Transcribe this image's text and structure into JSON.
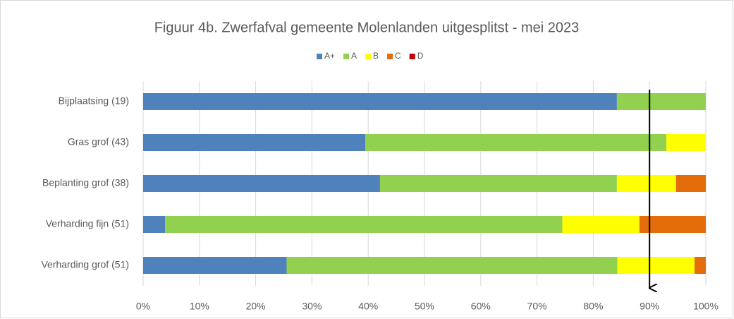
{
  "chart_data": {
    "type": "stacked_bar_horizontal",
    "title": "Figuur 4b. Zwerfafval gemeente Molenlanden uitgesplitst - mei 2023",
    "categories": [
      "Bijplaatsing (19)",
      "Gras grof (43)",
      "Beplanting grof (38)",
      "Verharding fijn (51)",
      "Verharding grof (51)"
    ],
    "series": [
      {
        "name": "A+",
        "color": "#4f81bd",
        "values": [
          84.2,
          39.5,
          42.1,
          3.9,
          25.5
        ]
      },
      {
        "name": "A",
        "color": "#92d050",
        "values": [
          15.8,
          53.5,
          42.1,
          70.6,
          58.8
        ]
      },
      {
        "name": "B",
        "color": "#ffff00",
        "values": [
          0,
          7.0,
          10.5,
          13.7,
          13.7
        ]
      },
      {
        "name": "C",
        "color": "#e46c0a",
        "values": [
          0,
          0,
          5.3,
          11.8,
          2.0
        ]
      },
      {
        "name": "D",
        "color": "#c00000",
        "values": [
          0,
          0,
          0,
          0,
          0
        ]
      }
    ],
    "xlim": [
      0,
      100
    ],
    "xticks": [
      {
        "value": 0,
        "label": "0%"
      },
      {
        "value": 10,
        "label": "10%"
      },
      {
        "value": 20,
        "label": "20%"
      },
      {
        "value": 30,
        "label": "30%"
      },
      {
        "value": 40,
        "label": "40%"
      },
      {
        "value": 50,
        "label": "50%"
      },
      {
        "value": 60,
        "label": "60%"
      },
      {
        "value": 70,
        "label": "70%"
      },
      {
        "value": 80,
        "label": "80%"
      },
      {
        "value": 90,
        "label": "90%"
      },
      {
        "value": 100,
        "label": "100%"
      }
    ],
    "reference_value": 90,
    "grid": true,
    "legend": "top"
  }
}
